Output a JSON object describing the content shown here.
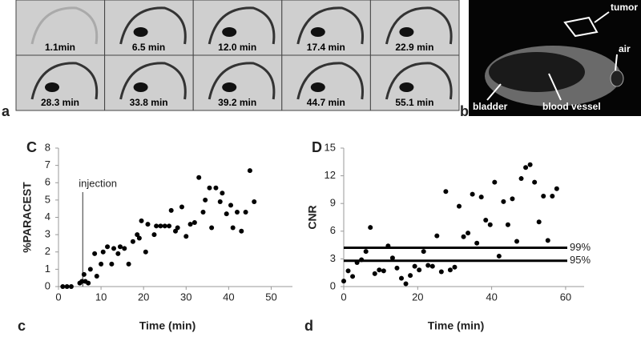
{
  "figure": {
    "panel_a": {
      "letter": "a",
      "times": [
        "1.1min",
        "6.5 min",
        "12.0 min",
        "17.4 min",
        "22.9 min",
        "28.3 min",
        "33.8 min",
        "39.2 min",
        "44.7 min",
        "55.1 min"
      ]
    },
    "panel_b": {
      "letter": "b",
      "annotations": [
        "tumor",
        "air",
        "bladder",
        "blood vessel"
      ]
    },
    "panel_c_letter": "c",
    "panel_d_letter": "d"
  },
  "chart_data": [
    {
      "type": "scatter",
      "title": "C",
      "xlabel": "Time (min)",
      "ylabel": "%PARACEST",
      "color": "#000000",
      "xlim": [
        0,
        55
      ],
      "xticks": [
        0,
        10,
        20,
        30,
        40,
        50
      ],
      "ylim": [
        0,
        8
      ],
      "yticks": [
        0,
        1,
        2,
        3,
        4,
        5,
        6,
        7,
        8
      ],
      "injection": {
        "x": 5.7,
        "label": "injection"
      },
      "x": [
        1,
        2,
        3,
        5,
        5.5,
        6,
        6.3,
        7,
        7.5,
        8.5,
        9,
        10,
        10.5,
        11.5,
        12.5,
        13,
        14,
        14.5,
        15.5,
        16.5,
        17.5,
        18.5,
        19,
        19.5,
        20.5,
        21,
        22.5,
        23,
        24,
        25,
        26,
        26.5,
        27.5,
        28,
        29,
        30,
        31,
        32,
        33,
        34,
        34.5,
        35.5,
        36,
        37,
        38,
        38.5,
        39.5,
        40.5,
        41,
        42,
        43,
        44,
        45,
        46
      ],
      "values": [
        0,
        0,
        0,
        0.2,
        0.3,
        0.7,
        0.3,
        0.2,
        1.0,
        1.9,
        0.6,
        1.3,
        2.0,
        2.3,
        1.3,
        2.2,
        1.9,
        2.3,
        2.2,
        1.3,
        2.6,
        3.0,
        2.8,
        3.8,
        2.0,
        3.6,
        3.0,
        3.5,
        3.5,
        3.5,
        3.5,
        4.4,
        3.2,
        3.4,
        4.6,
        2.9,
        3.6,
        3.7,
        6.3,
        4.3,
        5.0,
        5.7,
        3.4,
        5.7,
        4.9,
        5.4,
        4.2,
        4.7,
        3.4,
        4.3,
        3.2,
        4.3,
        6.7,
        4.9
      ]
    },
    {
      "type": "scatter",
      "title": "D",
      "xlabel": "Time (min)",
      "ylabel": "CNR",
      "color": "#000000",
      "xlim": [
        0,
        65
      ],
      "xticks": [
        0,
        20,
        40,
        60
      ],
      "ylim": [
        0,
        15
      ],
      "yticks": [
        0,
        3,
        6,
        9,
        12,
        15
      ],
      "thresholds": [
        {
          "value": 4.2,
          "label": "99%"
        },
        {
          "value": 2.8,
          "label": "95%"
        }
      ],
      "x": [
        0,
        1.2,
        2.4,
        3.6,
        4.8,
        6,
        7.2,
        8.4,
        9.6,
        10.8,
        12,
        13.2,
        14.4,
        15.6,
        16.8,
        18,
        19.2,
        20.4,
        21.6,
        22.8,
        24,
        25.2,
        26.4,
        27.6,
        28.8,
        30,
        31.2,
        32.4,
        33.6,
        34.8,
        36,
        37.2,
        38.4,
        39.6,
        40.8,
        42,
        43.2,
        44.4,
        45.6,
        46.8,
        48,
        49.2,
        50.4,
        51.6,
        52.8,
        54,
        55.2,
        56.4,
        57.6
      ],
      "values": [
        0.6,
        1.7,
        1.1,
        2.6,
        2.9,
        3.8,
        6.4,
        1.4,
        1.8,
        1.7,
        4.4,
        3.1,
        2.0,
        0.9,
        0.3,
        1.2,
        2.2,
        1.8,
        3.8,
        2.3,
        2.2,
        5.5,
        1.6,
        10.3,
        1.8,
        2.1,
        8.7,
        5.4,
        5.8,
        10.0,
        4.7,
        9.7,
        7.2,
        6.7,
        11.3,
        3.3,
        9.2,
        6.7,
        9.5,
        4.9,
        11.7,
        12.9,
        13.2,
        11.3,
        7.0,
        9.8,
        5.0,
        9.8,
        10.6
      ]
    }
  ]
}
